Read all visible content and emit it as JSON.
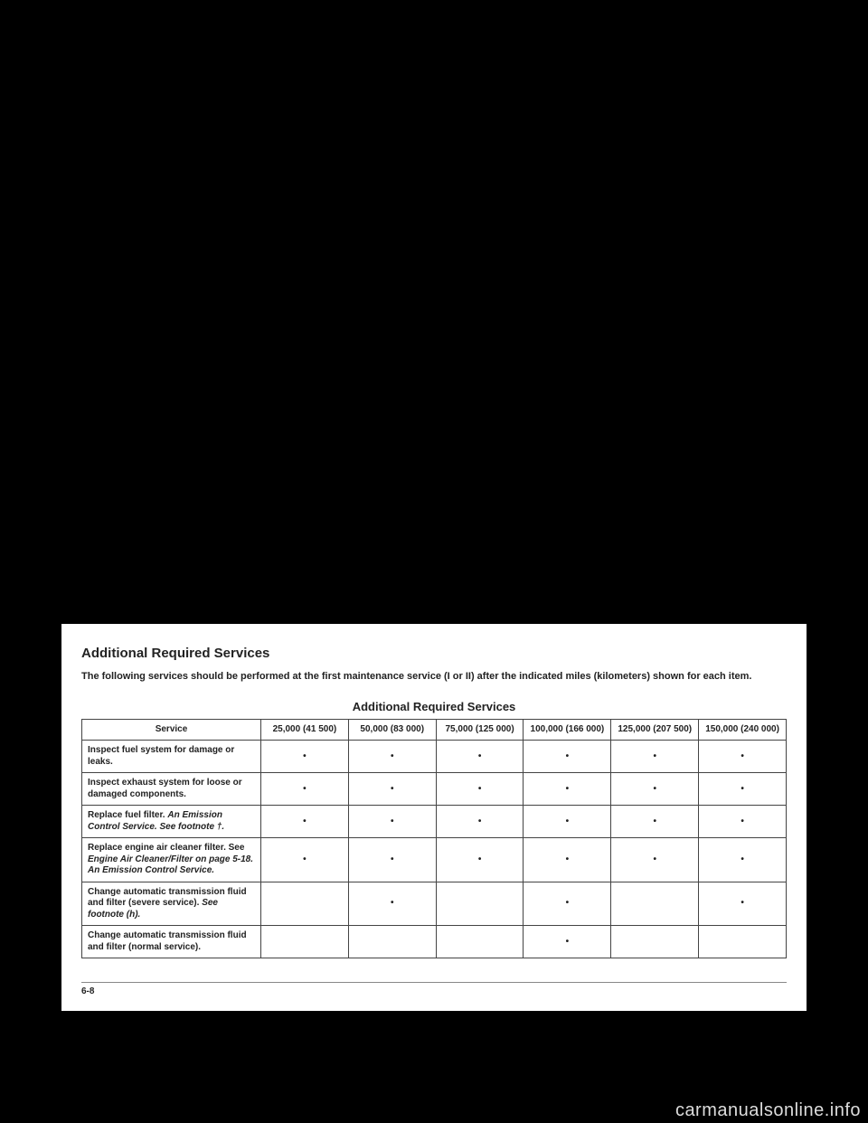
{
  "section_title": "Additional Required Services",
  "intro_text": "The following services should be performed at the first maintenance service (I or II) after the indicated miles (kilometers) shown for each item.",
  "table_title": "Additional Required Services",
  "page_number": "6-8",
  "watermark": "carmanualsonline.info",
  "table": {
    "header_service": "Service",
    "mileage_columns": [
      "25,000 (41 500)",
      "50,000 (83 000)",
      "75,000 (125 000)",
      "100,000 (166 000)",
      "125,000 (207 500)",
      "150,000 (240 000)"
    ],
    "rows": [
      {
        "service_html": "Inspect fuel system for damage or leaks.",
        "dots": [
          true,
          true,
          true,
          true,
          true,
          true
        ]
      },
      {
        "service_html": "Inspect exhaust system for loose or damaged components.",
        "dots": [
          true,
          true,
          true,
          true,
          true,
          true
        ]
      },
      {
        "service_html": "Replace fuel filter. <span class=\"italic\">An Emission Control Service. See footnote †.</span>",
        "dots": [
          true,
          true,
          true,
          true,
          true,
          true
        ]
      },
      {
        "service_html": "Replace engine air cleaner filter. See <span class=\"italic\">Engine Air Cleaner/Filter on page 5-18. An Emission Control Service.</span>",
        "dots": [
          true,
          true,
          true,
          true,
          true,
          true
        ]
      },
      {
        "service_html": "Change automatic transmission fluid and filter (severe service). <span class=\"italic\">See footnote (h).</span>",
        "dots": [
          false,
          true,
          false,
          true,
          false,
          true
        ]
      },
      {
        "service_html": "Change automatic transmission fluid and filter (normal service).",
        "dots": [
          false,
          false,
          false,
          true,
          false,
          false
        ]
      }
    ]
  },
  "colors": {
    "page_bg": "#ffffff",
    "body_bg": "#000000",
    "text": "#222222",
    "border": "#444444",
    "watermark": "#dddddd"
  }
}
